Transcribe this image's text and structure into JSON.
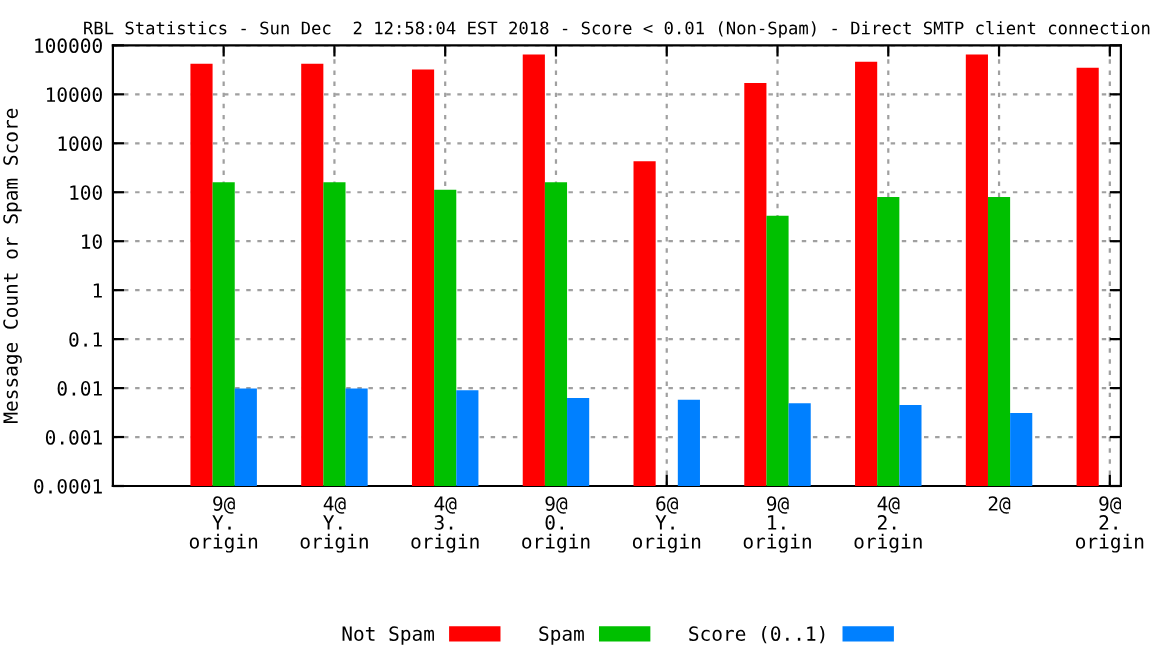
{
  "chart_data": {
    "type": "bar",
    "title": "RBL Statistics - Sun Dec  2 12:58:04 EST 2018 - Score < 0.01 (Non-Spam) - Direct SMTP client connection",
    "ylabel": "Message Count or Spam Score",
    "categories": [
      "9@\nY.\norigin",
      "4@\nY.\norigin",
      "4@\n3.\norigin",
      "9@\n0.\norigin",
      "6@\nY.\norigin",
      "9@\n1.\norigin",
      "4@\n2.\norigin",
      "2@",
      "9@\n2.\norigin"
    ],
    "series": [
      {
        "name": "Not Spam",
        "color": "#ff0000",
        "values": [
          42000,
          42000,
          32000,
          65000,
          430,
          17000,
          46000,
          65000,
          35000
        ]
      },
      {
        "name": "Spam",
        "color": "#00c000",
        "values": [
          160,
          160,
          112,
          160,
          null,
          33,
          80,
          80,
          null
        ]
      },
      {
        "name": "Score (0..1)",
        "color": "#0080ff",
        "values": [
          0.0098,
          0.0098,
          0.009,
          0.0063,
          0.0058,
          0.0049,
          0.0045,
          0.0031,
          null
        ]
      }
    ],
    "log": "y",
    "ylim": [
      0.0001,
      100000
    ],
    "yticks": [
      0.0001,
      0.001,
      0.01,
      0.1,
      1,
      10,
      100,
      1000,
      10000,
      100000
    ],
    "grid": true,
    "legend": "bottom"
  }
}
